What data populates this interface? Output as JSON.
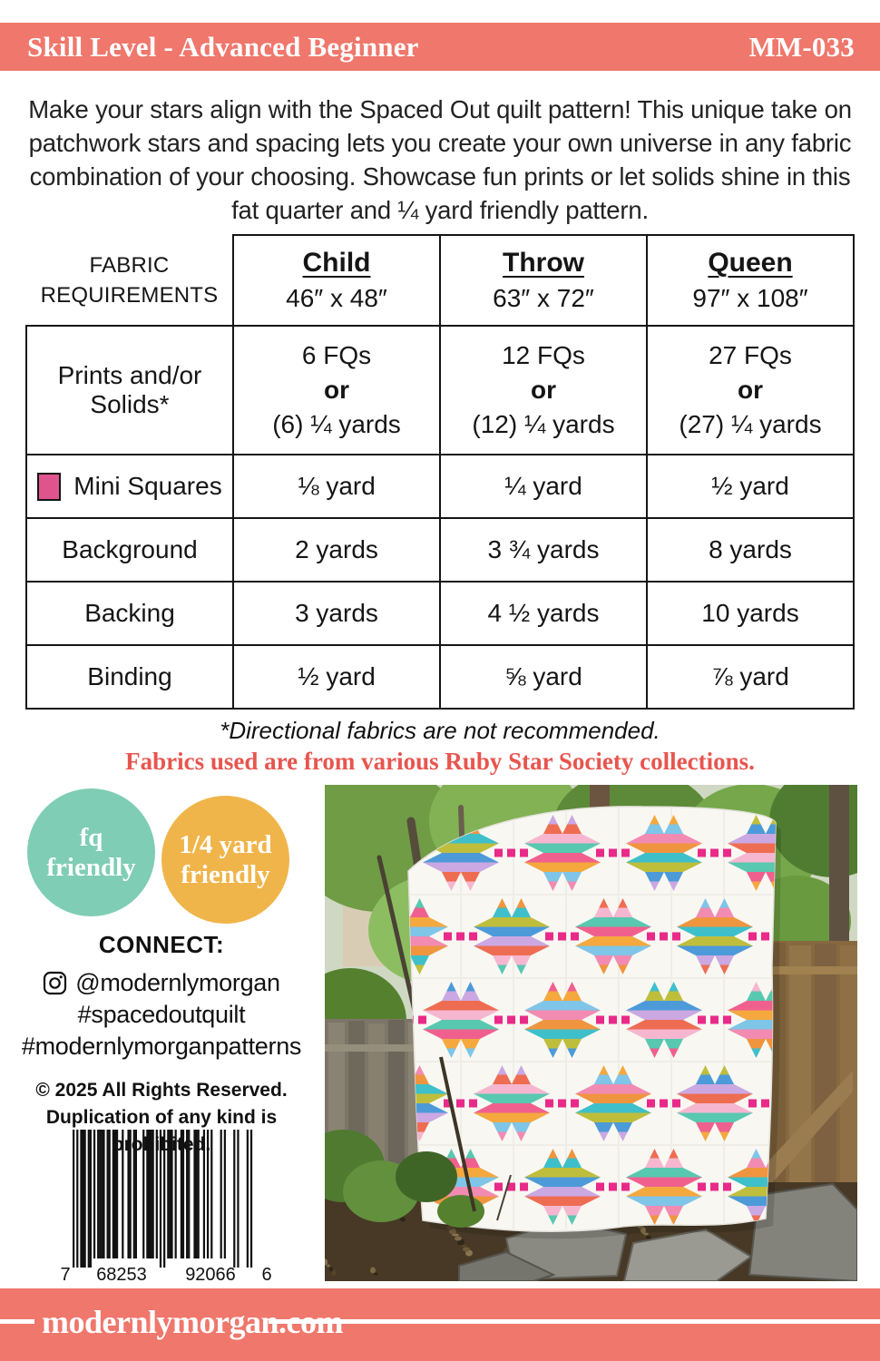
{
  "header": {
    "skill_level": "Skill Level - Advanced Beginner",
    "pattern_number": "MM-033"
  },
  "intro": "Make your stars align with the Spaced Out quilt pattern!  This unique take on patchwork stars and spacing lets you create your own universe in any fabric combination of your choosing.  Showcase fun prints or let solids shine in this fat quarter and ¼ yard friendly pattern.",
  "table": {
    "corner_line1": "FABRIC",
    "corner_line2": "REQUIREMENTS",
    "columns": [
      {
        "name": "Child",
        "size": "46″ x 48″"
      },
      {
        "name": "Throw",
        "size": "63″ x 72″"
      },
      {
        "name": "Queen",
        "size": "97″ x 108″"
      }
    ],
    "rows": {
      "prints": {
        "label": "Prints and/or Solids*",
        "child": {
          "top": "6 FQs",
          "mid": "or",
          "bottom": "(6) ¼ yards"
        },
        "throw": {
          "top": "12 FQs",
          "mid": "or",
          "bottom": "(12) ¼ yards"
        },
        "queen": {
          "top": "27 FQs",
          "mid": "or",
          "bottom": "(27) ¼ yards"
        }
      },
      "mini_squares": {
        "label": "Mini Squares",
        "child": "⅛ yard",
        "throw": "¼ yard",
        "queen": "½ yard"
      },
      "background": {
        "label": "Background",
        "child": "2 yards",
        "throw": "3 ¾ yards",
        "queen": "8 yards"
      },
      "backing": {
        "label": "Backing",
        "child": "3 yards",
        "throw": "4 ½ yards",
        "queen": "10 yards"
      },
      "binding": {
        "label": "Binding",
        "child": "½ yard",
        "throw": "⅝ yard",
        "queen": "⅞ yard"
      }
    }
  },
  "notes": {
    "directional": "*Directional fabrics are not recommended.",
    "fabrics": "Fabrics used are from various Ruby Star Society collections."
  },
  "badges": {
    "fq": {
      "line1": "fq",
      "line2": "friendly",
      "color": "#7fcdb4"
    },
    "quarter": {
      "line1": "1/4 yard",
      "line2": "friendly",
      "color": "#f0b54a"
    }
  },
  "connect": {
    "heading": "CONNECT:",
    "instagram": "@modernlymorgan",
    "hashtag1": "#spacedoutquilt",
    "hashtag2": "#modernlymorganpatterns",
    "copyright": "© 2025  All Rights Reserved.",
    "duplication": "Duplication of any kind is prohibited."
  },
  "barcode": {
    "digit_lead": "7",
    "digit_group1": "68253",
    "digit_group2": "92066",
    "digit_check": "6"
  },
  "footer": {
    "website": "modernlymorgan.com"
  },
  "colors": {
    "accent_coral": "#ef776c",
    "red_note": "#e8554e",
    "badge_teal": "#7fcdb4",
    "badge_yellow": "#f0b54a",
    "mini_square_pink": "#e0548e",
    "quilt_dot_magenta": "#e92a88"
  },
  "photo": {
    "description": "Spaced Out quilt with colorful striped star blocks hanging outdoors among trees, wooden fences and a stone path",
    "quilt_background": "#f8f7f2",
    "star_stripe_colors": [
      "#f28bb2",
      "#f0953f",
      "#3fbfca",
      "#bfbe3c",
      "#4d9ad9",
      "#cba8e2",
      "#ee6d52",
      "#f6b6cf",
      "#58c8b0",
      "#f0608f",
      "#f4a83e",
      "#7fc5e8"
    ],
    "dot_color": "#e92a88"
  }
}
